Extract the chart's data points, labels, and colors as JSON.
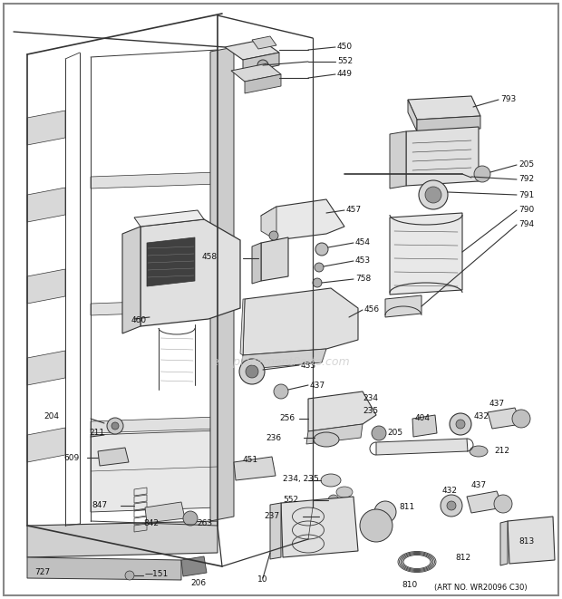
{
  "background_color": "#ffffff",
  "line_color": "#333333",
  "text_color": "#111111",
  "watermark": "eReplacementParts.com",
  "art_no": "(ART NO. WR20096 C30)",
  "fontsize": 6.5
}
